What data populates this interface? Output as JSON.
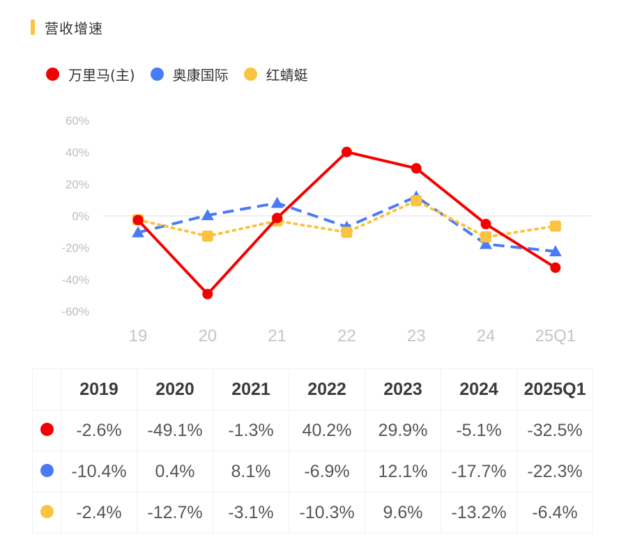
{
  "header": {
    "title": "营收增速",
    "accent_color": "#FBC33F"
  },
  "legend": [
    {
      "label": "万里马(主)",
      "color": "#F50000"
    },
    {
      "label": "奥康国际",
      "color": "#4A7BF7"
    },
    {
      "label": "红蜻蜓",
      "color": "#FBC33F"
    }
  ],
  "chart_data": {
    "type": "line",
    "title": "营收增速",
    "xlabel": "",
    "ylabel": "",
    "categories": [
      "19",
      "20",
      "21",
      "22",
      "23",
      "24",
      "25Q1"
    ],
    "yticks": [
      "60%",
      "40%",
      "20%",
      "0%",
      "-20%",
      "-40%",
      "-60%"
    ],
    "ylim": [
      -60,
      60
    ],
    "grid": "zero-line only",
    "legend_position": "top-left",
    "series": [
      {
        "name": "万里马(主)",
        "color": "#F50000",
        "style": "solid",
        "marker": "circle",
        "values": [
          -2.6,
          -49.1,
          -1.3,
          40.2,
          29.9,
          -5.1,
          -32.5
        ]
      },
      {
        "name": "奥康国际",
        "color": "#4A7BF7",
        "style": "dashed",
        "marker": "triangle",
        "values": [
          -10.4,
          0.4,
          8.1,
          -6.9,
          12.1,
          -17.7,
          -22.3
        ]
      },
      {
        "name": "红蜻蜓",
        "color": "#FBC33F",
        "style": "dotted",
        "marker": "square",
        "values": [
          -2.4,
          -12.7,
          -3.1,
          -10.3,
          9.6,
          -13.2,
          -6.4
        ]
      }
    ]
  },
  "table": {
    "headers": [
      "2019",
      "2020",
      "2021",
      "2022",
      "2023",
      "2024",
      "2025Q1"
    ],
    "rows": [
      {
        "color": "#F50000",
        "cells": [
          "-2.6%",
          "-49.1%",
          "-1.3%",
          "40.2%",
          "29.9%",
          "-5.1%",
          "-32.5%"
        ]
      },
      {
        "color": "#4A7BF7",
        "cells": [
          "-10.4%",
          "0.4%",
          "8.1%",
          "-6.9%",
          "12.1%",
          "-17.7%",
          "-22.3%"
        ]
      },
      {
        "color": "#FBC33F",
        "cells": [
          "-2.4%",
          "-12.7%",
          "-3.1%",
          "-10.3%",
          "9.6%",
          "-13.2%",
          "-6.4%"
        ]
      }
    ]
  }
}
